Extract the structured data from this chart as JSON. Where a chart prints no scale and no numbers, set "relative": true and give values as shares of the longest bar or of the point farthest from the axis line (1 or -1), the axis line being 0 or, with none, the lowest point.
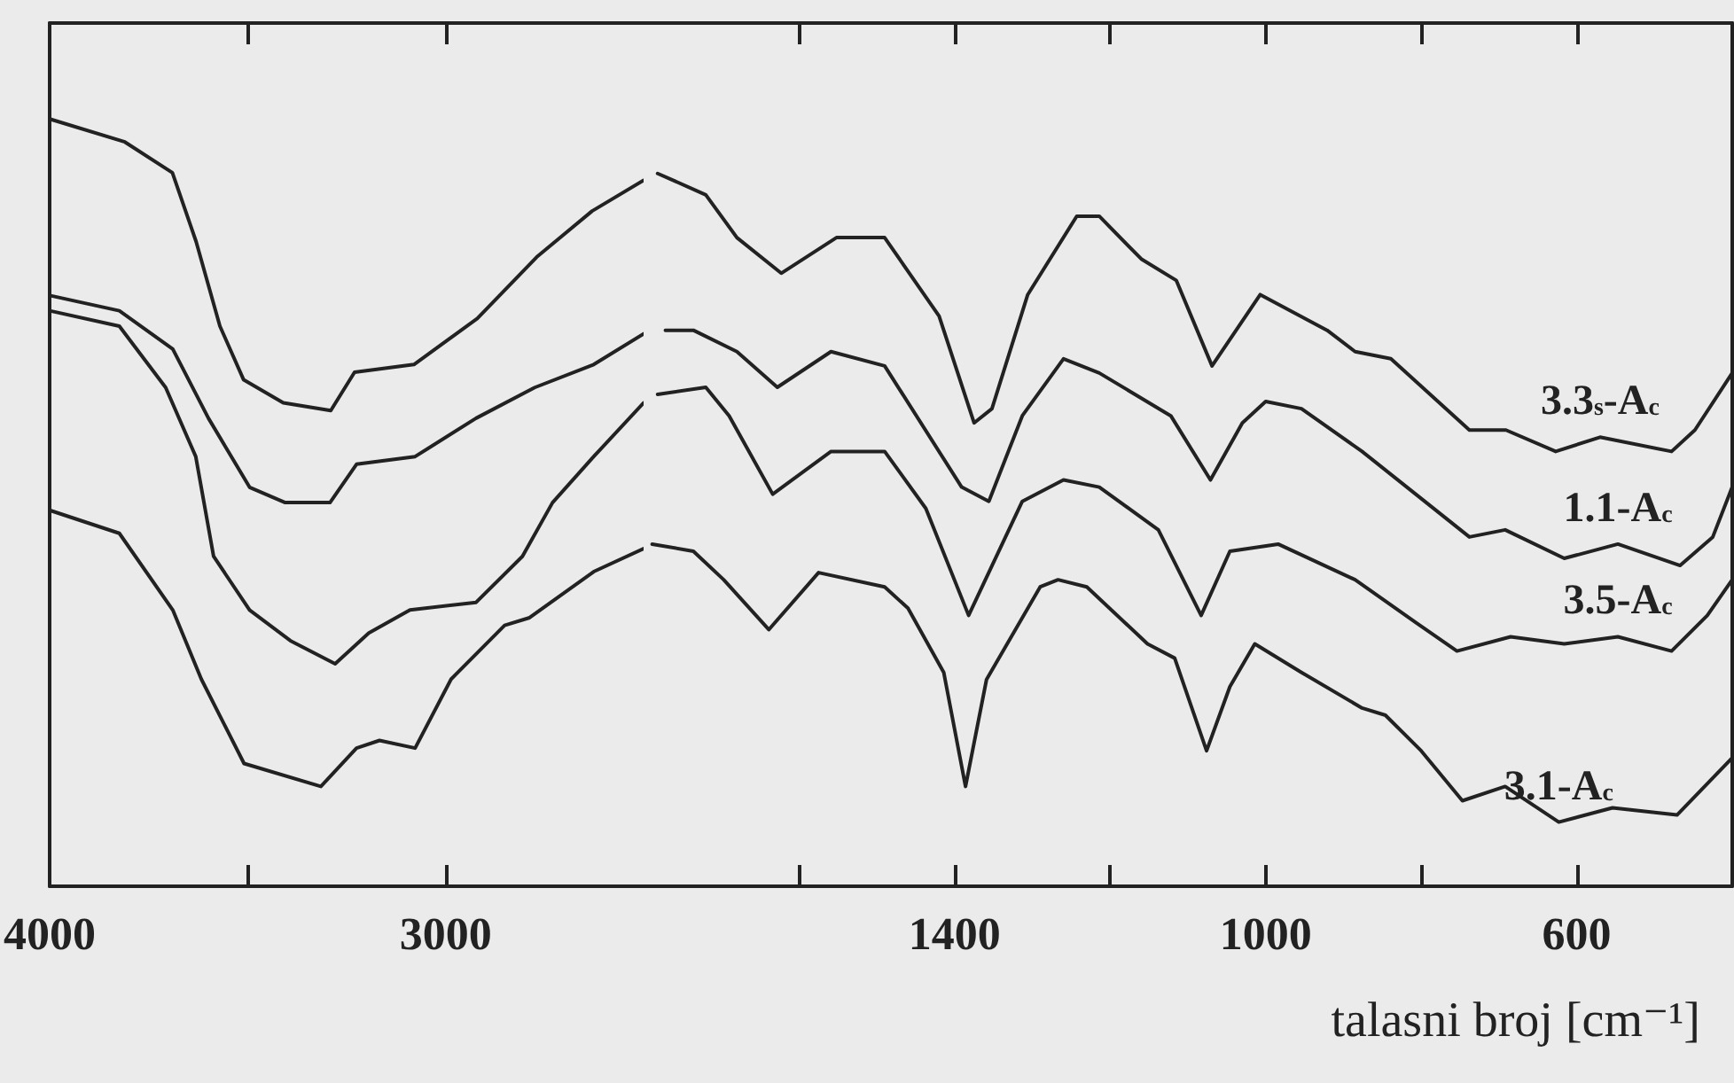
{
  "chart_data": [
    {
      "type": "line",
      "relative": true,
      "marker": "none",
      "line_style": "solid",
      "tick_labels": "x",
      "xlim": [
        4000,
        2500
      ],
      "xticks": [
        4000,
        {
          "value": 3500,
          "label": null
        },
        3000
      ],
      "series": [
        {
          "color": "#222222",
          "x": [
            4000,
            3810,
            3690,
            3630,
            3570,
            3510,
            3410,
            3290,
            3230,
            3080,
            2920,
            2770,
            2630,
            2500
          ],
          "values": [
            1.0,
            0.97,
            0.93,
            0.84,
            0.73,
            0.66,
            0.63,
            0.62,
            0.67,
            0.68,
            0.74,
            0.82,
            0.88,
            0.92
          ]
        },
        {
          "color": "#222222",
          "x": [
            4000,
            3824,
            3689,
            3599,
            3495,
            3405,
            3292,
            3225,
            3077,
            2923,
            2775,
            2626,
            2500
          ],
          "values": [
            0.77,
            0.75,
            0.7,
            0.61,
            0.52,
            0.5,
            0.5,
            0.55,
            0.56,
            0.61,
            0.65,
            0.68,
            0.72
          ]
        },
        {
          "color": "#222222",
          "x": [
            4000,
            3824,
            3707,
            3631,
            3586,
            3495,
            3392,
            3279,
            3194,
            3090,
            2923,
            2806,
            2730,
            2626,
            2500
          ],
          "values": [
            0.75,
            0.73,
            0.65,
            0.56,
            0.43,
            0.36,
            0.32,
            0.29,
            0.33,
            0.36,
            0.37,
            0.43,
            0.5,
            0.56,
            0.63
          ]
        },
        {
          "color": "#222222",
          "x": [
            4000,
            3824,
            3689,
            3617,
            3509,
            3315,
            3225,
            3167,
            3077,
            2986,
            2851,
            2788,
            2626,
            2500
          ],
          "values": [
            0.49,
            0.46,
            0.36,
            0.27,
            0.16,
            0.13,
            0.18,
            0.19,
            0.18,
            0.27,
            0.34,
            0.35,
            0.41,
            0.44
          ]
        }
      ]
    },
    {
      "type": "line",
      "relative": true,
      "marker": "none",
      "line_style": "solid",
      "tick_labels": "x",
      "xlim": [
        1800,
        400
      ],
      "xticks": [
        {
          "value": 1600,
          "label": null
        },
        1400,
        {
          "value": 1200,
          "label": null
        },
        1000,
        {
          "value": 800,
          "label": null
        },
        600
      ],
      "xlabel": "talasni broj [cm⁻¹]",
      "series": [
        {
          "name": "3.3$_{s}$-A$_{c}$",
          "color": "#222222",
          "x": [
            1782,
            1720,
            1680,
            1623,
            1552,
            1490,
            1420,
            1375,
            1352,
            1306,
            1243,
            1214,
            1160,
            1115,
            1069,
            1007,
            921,
            885,
            839,
            738,
            691,
            627,
            570,
            478,
            448,
            400
          ],
          "values": [
            1.0,
            0.97,
            0.91,
            0.86,
            0.91,
            0.91,
            0.8,
            0.65,
            0.67,
            0.83,
            0.94,
            0.94,
            0.88,
            0.85,
            0.73,
            0.83,
            0.78,
            0.75,
            0.74,
            0.64,
            0.64,
            0.61,
            0.63,
            0.61,
            0.64,
            0.72
          ]
        },
        {
          "name": "1.1-A$_{c}$",
          "color": "#222222",
          "x": [
            1772,
            1736,
            1680,
            1628,
            1559,
            1490,
            1391,
            1356,
            1313,
            1260,
            1214,
            1122,
            1071,
            1030,
            1000,
            954,
            876,
            807,
            738,
            692,
            616,
            547,
            467,
            425,
            400
          ],
          "values": [
            0.78,
            0.78,
            0.75,
            0.7,
            0.75,
            0.73,
            0.56,
            0.54,
            0.66,
            0.74,
            0.72,
            0.66,
            0.57,
            0.65,
            0.68,
            0.67,
            0.61,
            0.55,
            0.49,
            0.5,
            0.46,
            0.48,
            0.45,
            0.49,
            0.56
          ]
        },
        {
          "name": "3.5-A$_{c}$",
          "color": "#222222",
          "x": [
            1782,
            1720,
            1690,
            1634,
            1559,
            1490,
            1437,
            1382,
            1313,
            1260,
            1214,
            1138,
            1083,
            1046,
            984,
            885,
            807,
            754,
            685,
            616,
            547,
            478,
            432,
            400
          ],
          "values": [
            0.69,
            0.7,
            0.66,
            0.55,
            0.61,
            0.61,
            0.53,
            0.38,
            0.54,
            0.57,
            0.56,
            0.5,
            0.38,
            0.47,
            0.48,
            0.43,
            0.37,
            0.33,
            0.35,
            0.34,
            0.35,
            0.33,
            0.38,
            0.43
          ]
        },
        {
          "name": "3.1-A$_{c}$",
          "color": "#222222",
          "x": [
            1789,
            1736,
            1697,
            1639,
            1575,
            1490,
            1460,
            1414,
            1386,
            1359,
            1290,
            1267,
            1230,
            1152,
            1117,
            1076,
            1046,
            1014,
            954,
            876,
            846,
            800,
            747,
            692,
            623,
            554,
            471,
            400
          ],
          "values": [
            0.48,
            0.47,
            0.43,
            0.36,
            0.44,
            0.42,
            0.39,
            0.3,
            0.14,
            0.29,
            0.42,
            0.43,
            0.42,
            0.34,
            0.32,
            0.19,
            0.28,
            0.34,
            0.3,
            0.25,
            0.24,
            0.19,
            0.12,
            0.14,
            0.09,
            0.11,
            0.1,
            0.18
          ]
        }
      ]
    }
  ]
}
